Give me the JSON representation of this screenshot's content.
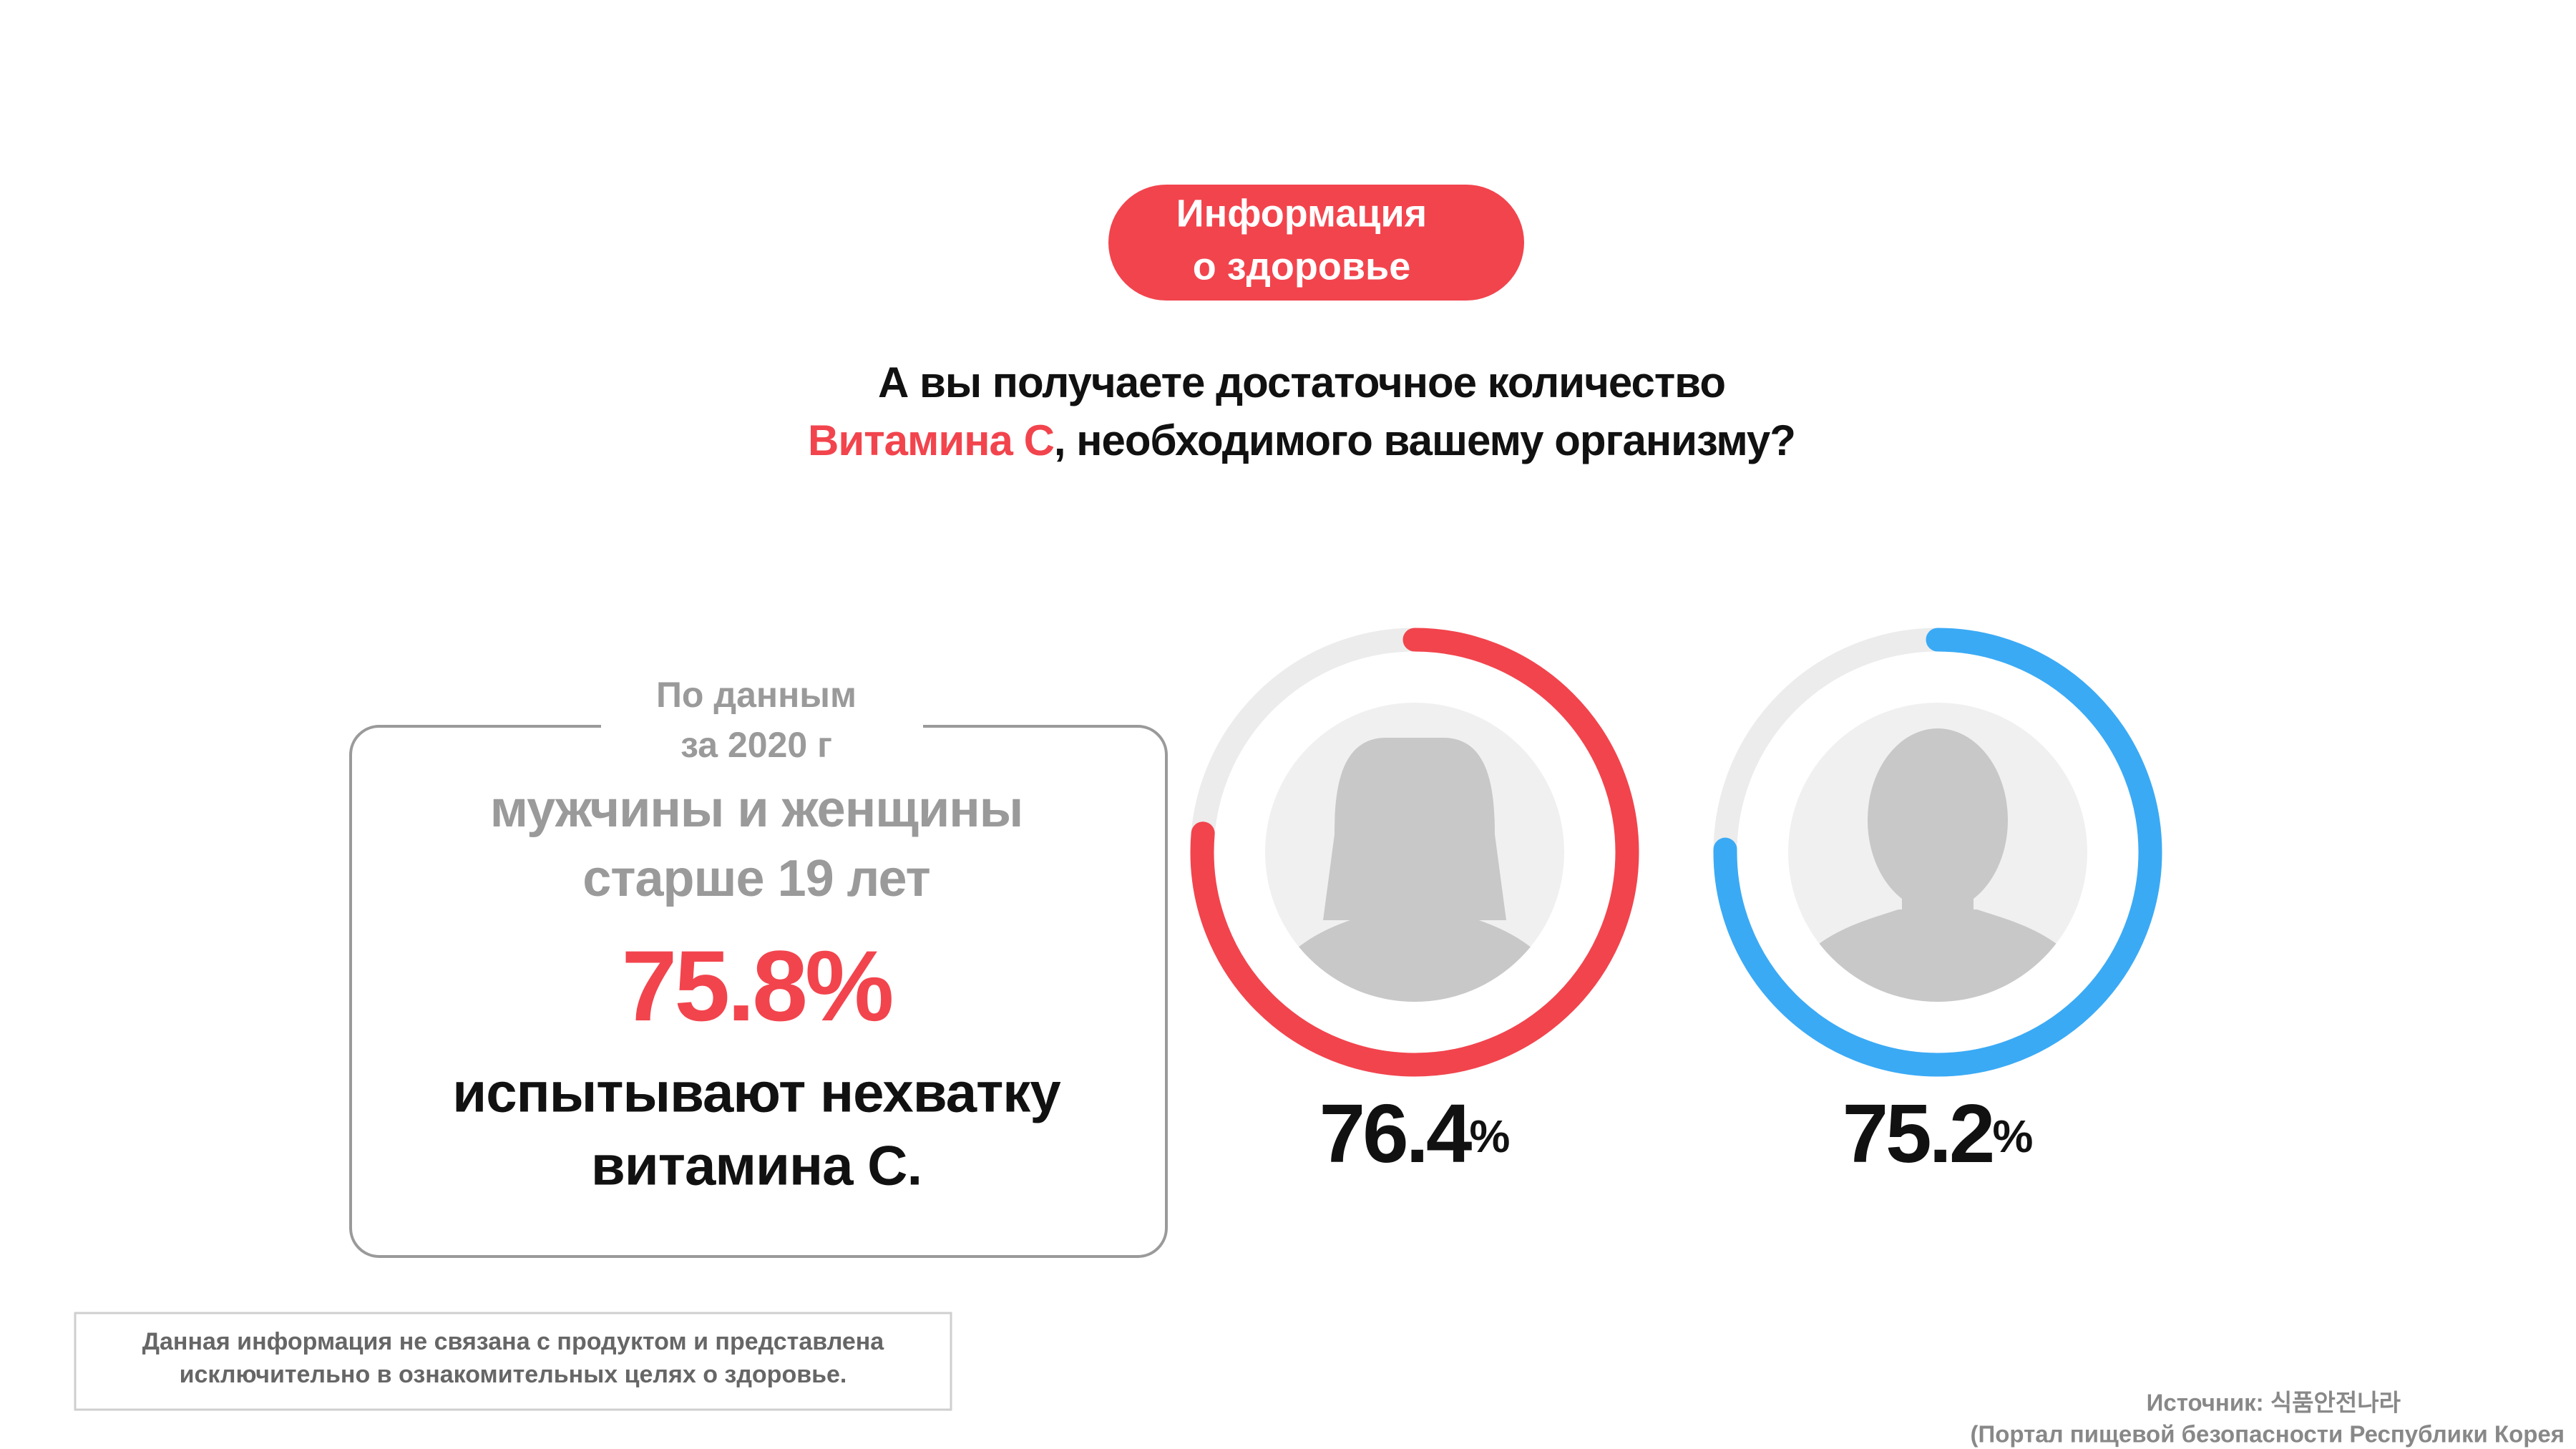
{
  "badge": [
    "Информация",
    "о здоровье"
  ],
  "heading": {
    "line1": "А вы получаете достаточное количество",
    "highlight": "Витамина С",
    "rest": ", необходимого вашему организму?"
  },
  "stat": {
    "caption": [
      "По данным",
      "за 2020 г"
    ],
    "group": [
      "мужчины и женщины",
      "старше 19 лет"
    ],
    "value": "75.8%",
    "description": [
      "испытывают нехватку",
      "витамина С."
    ]
  },
  "gauges": [
    {
      "value": 76.4,
      "unit": "%",
      "color": "#f2444d"
    },
    {
      "value": 75.2,
      "unit": "%",
      "color": "#3aaaf5"
    }
  ],
  "disclaimer": [
    "Данная информация не связана с продуктом и представлена",
    "исключительно в ознакомительных целях о здоровье."
  ],
  "source": [
    "Источник: 식품안전나라",
    "(Портал пищевой безопасности Республики Корея"
  ]
}
